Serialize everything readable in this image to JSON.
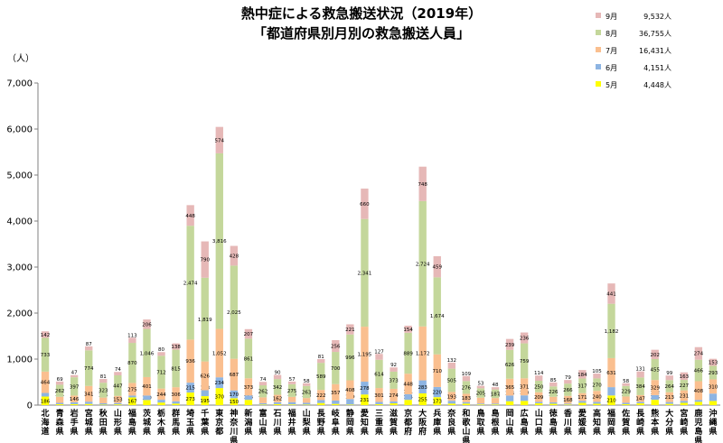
{
  "chart_data": {
    "type": "bar",
    "title": "熱中症による救急搬送状況（2019年）",
    "subtitle": "「都道府県別月別の救急搬送人員」",
    "ylabel": "（人）",
    "ylim": [
      0,
      7000
    ],
    "yticks": [
      "0",
      "1,000",
      "2,000",
      "3,000",
      "4,000",
      "5,000",
      "6,000",
      "7,000"
    ],
    "grid": false,
    "legend_position": "top-right",
    "categories": [
      "北海道",
      "青森県",
      "岩手県",
      "宮城県",
      "秋田県",
      "山形県",
      "福島県",
      "茨城県",
      "栃木県",
      "群馬県",
      "埼玉県",
      "千葉県",
      "東京都",
      "神奈川県",
      "新潟県",
      "富山県",
      "石川県",
      "福井県",
      "山梨県",
      "長野県",
      "岐阜県",
      "静岡県",
      "愛知県",
      "三重県",
      "滋賀県",
      "京都府",
      "大阪府",
      "兵庫県",
      "奈良県",
      "和歌山県",
      "鳥取県",
      "島根県",
      "岡山県",
      "広島県",
      "山口県",
      "徳島県",
      "香川県",
      "愛媛県",
      "高知県",
      "福岡県",
      "佐賀県",
      "長崎県",
      "熊本県",
      "大分県",
      "宮崎県",
      "鹿児島県",
      "沖縄県"
    ],
    "series": [
      {
        "name": "5月",
        "total": "4,448人",
        "color": "#ffff00",
        "values": [
          186,
          20,
          22,
          25,
          10,
          17,
          167,
          110,
          56,
          33,
          273,
          195,
          370,
          150,
          114,
          12,
          22,
          15,
          11,
          45,
          26,
          12,
          231,
          20,
          40,
          114,
          255,
          173,
          34,
          34,
          15,
          14,
          84,
          92,
          40,
          30,
          13,
          50,
          30,
          210,
          20,
          40,
          115,
          27,
          50,
          72,
          90
        ],
        "labels": [
          "186",
          "",
          "",
          "",
          "",
          "",
          "167",
          "110",
          "",
          "",
          "273",
          "195",
          "370",
          "150",
          "114",
          "",
          "",
          "",
          "",
          "",
          "",
          "",
          "231",
          "",
          "",
          "114",
          "255",
          "173",
          "",
          "",
          "",
          "",
          "",
          "92",
          "",
          "",
          "",
          "",
          "",
          "210",
          "",
          "",
          "115",
          "",
          "",
          "",
          ""
        ]
      },
      {
        "name": "6月",
        "total": "4,151人",
        "color": "#8db4e2",
        "values": [
          78,
          30,
          40,
          50,
          30,
          30,
          40,
          98,
          60,
          50,
          215,
          128,
          234,
          170,
          96,
          30,
          40,
          50,
          40,
          63,
          73,
          119,
          278,
          50,
          40,
          121,
          283,
          220,
          60,
          30,
          20,
          20,
          124,
          120,
          30,
          30,
          20,
          40,
          40,
          180,
          30,
          30,
          102,
          40,
          40,
          40,
          160
        ],
        "labels": [
          "78",
          "",
          "",
          "",
          "",
          "",
          "",
          "98",
          "",
          "",
          "215",
          "128",
          "234",
          "170",
          "96",
          "",
          "",
          "",
          "",
          "63",
          "73",
          "119",
          "278",
          "",
          "",
          "121",
          "283",
          "220",
          "",
          "",
          "",
          "",
          "124",
          "120",
          "",
          "",
          "",
          "",
          "",
          "",
          "",
          "",
          "102",
          "",
          "",
          "",
          ""
        ]
      },
      {
        "name": "7月",
        "total": "16,431人",
        "color": "#fabf8f",
        "values": [
          464,
          131,
          146,
          341,
          124,
          153,
          275,
          401,
          244,
          306,
          936,
          626,
          1052,
          687,
          373,
          127,
          162,
          114,
          103,
          222,
          357,
          408,
          1195,
          301,
          274,
          448,
          1172,
          710,
          193,
          183,
          126,
          120,
          365,
          371,
          209,
          121,
          168,
          171,
          240,
          631,
          137,
          147,
          329,
          213,
          231,
          408,
          310
        ],
        "labels": [
          "464",
          "131",
          "146",
          "341",
          "124",
          "153",
          "275",
          "401",
          "244",
          "306",
          "936",
          "626",
          "1,052",
          "687",
          "373",
          "127",
          "162",
          "114",
          "103",
          "222",
          "357",
          "408",
          "1,195",
          "301",
          "274",
          "448",
          "1,172",
          "710",
          "193",
          "183",
          "126",
          "120",
          "365",
          "371",
          "209",
          "121",
          "168",
          "171",
          "240",
          "631",
          "137",
          "147",
          "329",
          "213",
          "231",
          "408",
          "310"
        ]
      },
      {
        "name": "8月",
        "total": "36,755人",
        "color": "#c4d79b",
        "values": [
          733,
          262,
          397,
          774,
          323,
          447,
          870,
          1046,
          712,
          815,
          2474,
          1819,
          3816,
          2025,
          861,
          262,
          342,
          275,
          263,
          589,
          700,
          996,
          2341,
          614,
          373,
          889,
          2724,
          1674,
          505,
          276,
          205,
          187,
          626,
          759,
          250,
          226,
          266,
          317,
          270,
          1182,
          229,
          384,
          455,
          264,
          227,
          466,
          293
        ],
        "labels": [
          "733",
          "262",
          "397",
          "774",
          "323",
          "447",
          "870",
          "1,046",
          "712",
          "815",
          "2,474",
          "1,819",
          "3,816",
          "2,025",
          "861",
          "262",
          "342",
          "275",
          "263",
          "589",
          "700",
          "996",
          "2,341",
          "614",
          "373",
          "889",
          "2,724",
          "1,674",
          "505",
          "276",
          "205",
          "187",
          "626",
          "759",
          "250",
          "226",
          "266",
          "317",
          "270",
          "1,182",
          "229",
          "384",
          "455",
          "264",
          "227",
          "466",
          "293"
        ]
      },
      {
        "name": "9月",
        "total": "9,532人",
        "color": "#e6b8b7",
        "values": [
          142,
          69,
          47,
          87,
          81,
          74,
          113,
          206,
          80,
          138,
          448,
          790,
          574,
          428,
          207,
          74,
          90,
          57,
          58,
          81,
          256,
          221,
          660,
          127,
          92,
          154,
          748,
          459,
          132,
          109,
          53,
          48,
          239,
          236,
          114,
          85,
          79,
          184,
          105,
          441,
          58,
          131,
          202,
          99,
          163,
          274,
          153
        ],
        "labels": [
          "142",
          "69",
          "47",
          "87",
          "81",
          "74",
          "113",
          "206",
          "80",
          "138",
          "448",
          "790",
          "574",
          "428",
          "207",
          "74",
          "90",
          "57",
          "58",
          "81",
          "256",
          "221",
          "660",
          "127",
          "92",
          "154",
          "748",
          "459",
          "132",
          "109",
          "53",
          "48",
          "239",
          "236",
          "114",
          "85",
          "79",
          "184",
          "105",
          "441",
          "58",
          "131",
          "202",
          "99",
          "163",
          "274",
          "153"
        ]
      }
    ]
  }
}
